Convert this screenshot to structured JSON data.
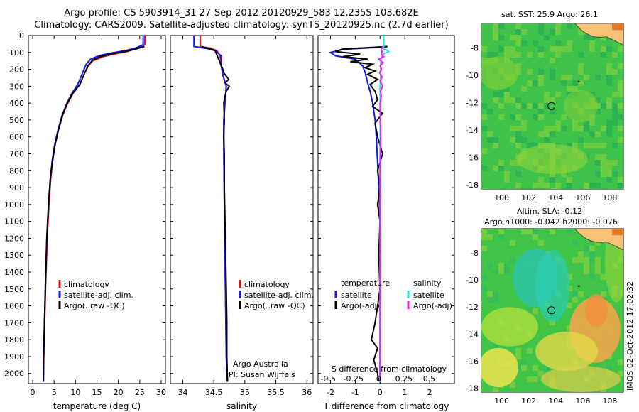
{
  "title": {
    "line1": "Argo profile: CS 5903914_31 27-Sep-2012 20120929_583 12.235S 103.682E",
    "line2": "Climatology: CARS2009. Satellite-adjusted climatology: synTS_20120925.nc (2.7d earlier)"
  },
  "colors": {
    "climatology": "#dd1111",
    "satellite": "#1515ee",
    "argo": "#000000",
    "sal_satellite": "#22e5e5",
    "sal_argo": "#ee22ee"
  },
  "chart_data": [
    {
      "type": "line",
      "id": "temperature",
      "xlabel": "temperature (deg C)",
      "xlim": [
        -1,
        31
      ],
      "xticks": [
        0,
        5,
        10,
        15,
        20,
        25,
        30
      ],
      "ylim": [
        0,
        2060
      ],
      "yticks": [
        0,
        100,
        200,
        300,
        400,
        500,
        600,
        700,
        800,
        900,
        1000,
        1100,
        1200,
        1300,
        1400,
        1500,
        1600,
        1700,
        1800,
        1900,
        2000
      ],
      "legend": [
        "climatology",
        "satellite-adj. clim.",
        "Argo(..raw -QC)"
      ],
      "series": [
        {
          "name": "climatology",
          "color": "#dd1111",
          "points": [
            [
              26.2,
              0
            ],
            [
              26.2,
              55
            ],
            [
              24.5,
              75
            ],
            [
              22,
              95
            ],
            [
              19,
              110
            ],
            [
              16.5,
              125
            ],
            [
              14,
              150
            ],
            [
              13,
              180
            ],
            [
              12,
              230
            ],
            [
              11,
              290
            ],
            [
              9.5,
              340
            ],
            [
              8.2,
              400
            ],
            [
              7,
              470
            ],
            [
              6,
              560
            ],
            [
              5.2,
              650
            ],
            [
              4.6,
              750
            ],
            [
              4.2,
              850
            ],
            [
              3.8,
              1000
            ],
            [
              3.4,
              1200
            ],
            [
              3.0,
              1500
            ],
            [
              2.8,
              1700
            ],
            [
              2.6,
              1900
            ],
            [
              2.5,
              2050
            ]
          ]
        },
        {
          "name": "satellite-adj. clim.",
          "color": "#1515ee",
          "points": [
            [
              25.8,
              0
            ],
            [
              25.8,
              55
            ],
            [
              24,
              75
            ],
            [
              21.5,
              90
            ],
            [
              18,
              105
            ],
            [
              15.5,
              120
            ],
            [
              13.5,
              140
            ],
            [
              12.5,
              170
            ],
            [
              11.5,
              230
            ],
            [
              10.5,
              290
            ],
            [
              9.2,
              340
            ],
            [
              8.0,
              400
            ],
            [
              6.9,
              470
            ],
            [
              5.9,
              560
            ],
            [
              5.1,
              650
            ],
            [
              4.5,
              750
            ],
            [
              4.1,
              850
            ],
            [
              3.7,
              1000
            ],
            [
              3.3,
              1200
            ],
            [
              2.95,
              1500
            ],
            [
              2.75,
              1700
            ],
            [
              2.55,
              1900
            ],
            [
              2.5,
              2050
            ]
          ]
        },
        {
          "name": "Argo(..raw -QC)",
          "color": "#000000",
          "points": [
            [
              26.1,
              65
            ],
            [
              24.3,
              78
            ],
            [
              21.8,
              93
            ],
            [
              18.5,
              108
            ],
            [
              16,
              123
            ],
            [
              14,
              145
            ],
            [
              13,
              175
            ],
            [
              12,
              230
            ],
            [
              11,
              290
            ],
            [
              9.4,
              340
            ],
            [
              8.1,
              400
            ],
            [
              7,
              470
            ],
            [
              6,
              560
            ],
            [
              5.2,
              650
            ],
            [
              4.6,
              750
            ],
            [
              4.1,
              850
            ],
            [
              3.7,
              1000
            ],
            [
              3.3,
              1200
            ],
            [
              2.95,
              1500
            ],
            [
              2.75,
              1700
            ],
            [
              2.55,
              1900
            ],
            [
              2.5,
              2045
            ]
          ]
        }
      ]
    },
    {
      "type": "line",
      "id": "salinity",
      "xlabel": "salinity",
      "xlim": [
        33.8,
        36.1
      ],
      "xticks": [
        34,
        34.5,
        35,
        35.5,
        36
      ],
      "ylim": [
        0,
        2060
      ],
      "legend": [
        "climatology",
        "satellite-adj. clim.",
        "Argo(..raw -QC)"
      ],
      "annotation": [
        "Argo Australia",
        "PI: Susan Wijffels"
      ],
      "series": [
        {
          "name": "climatology",
          "color": "#dd1111",
          "points": [
            [
              34.28,
              0
            ],
            [
              34.28,
              65
            ],
            [
              34.45,
              75
            ],
            [
              34.55,
              90
            ],
            [
              34.6,
              120
            ],
            [
              34.62,
              180
            ],
            [
              34.65,
              240
            ],
            [
              34.7,
              300
            ],
            [
              34.68,
              400
            ],
            [
              34.66,
              500
            ],
            [
              34.66,
              700
            ],
            [
              34.67,
              1000
            ],
            [
              34.68,
              1300
            ],
            [
              34.69,
              1600
            ],
            [
              34.7,
              1900
            ],
            [
              34.72,
              2050
            ]
          ]
        },
        {
          "name": "satellite-adj. clim.",
          "color": "#1515ee",
          "points": [
            [
              34.18,
              0
            ],
            [
              34.18,
              65
            ],
            [
              34.35,
              75
            ],
            [
              34.5,
              85
            ],
            [
              34.62,
              120
            ],
            [
              34.62,
              180
            ],
            [
              34.65,
              240
            ],
            [
              34.7,
              300
            ],
            [
              34.68,
              400
            ],
            [
              34.66,
              500
            ],
            [
              34.66,
              700
            ],
            [
              34.67,
              1000
            ],
            [
              34.68,
              1300
            ],
            [
              34.69,
              1600
            ],
            [
              34.7,
              1900
            ],
            [
              34.72,
              2050
            ]
          ]
        },
        {
          "name": "Argo(..raw -QC)",
          "color": "#000000",
          "points": [
            [
              34.3,
              65
            ],
            [
              34.4,
              75
            ],
            [
              34.52,
              90
            ],
            [
              34.55,
              115
            ],
            [
              34.6,
              160
            ],
            [
              34.62,
              180
            ],
            [
              34.64,
              195
            ],
            [
              34.66,
              220
            ],
            [
              34.7,
              240
            ],
            [
              34.74,
              260
            ],
            [
              34.68,
              280
            ],
            [
              34.75,
              300
            ],
            [
              34.7,
              330
            ],
            [
              34.68,
              360
            ],
            [
              34.66,
              400
            ],
            [
              34.67,
              500
            ],
            [
              34.66,
              600
            ],
            [
              34.67,
              700
            ],
            [
              34.67,
              900
            ],
            [
              34.68,
              1100
            ],
            [
              34.69,
              1300
            ],
            [
              34.7,
              1500
            ],
            [
              34.71,
              1700
            ],
            [
              34.71,
              1900
            ],
            [
              34.72,
              2045
            ]
          ]
        }
      ]
    },
    {
      "type": "line",
      "id": "difference",
      "xlabel": "T difference from climatology",
      "xlabel_top": "S difference from climatology",
      "xlim": [
        -2.5,
        3
      ],
      "xticks": [
        -2,
        -1,
        0,
        1,
        2
      ],
      "xlim_top": [
        -0.6,
        0.75
      ],
      "xticks_top": [
        -0.5,
        -0.25,
        0,
        0.25,
        0.5
      ],
      "ylim": [
        0,
        2060
      ],
      "legend_t": [
        "temperature",
        "satellite",
        "Argo(-adj)"
      ],
      "legend_s": [
        "salinity",
        "satellite",
        "Argo(-adj)"
      ],
      "series": [
        {
          "name": "T satellite",
          "color": "#1515ee",
          "points": [
            [
              0.3,
              65
            ],
            [
              -0.3,
              72
            ],
            [
              -1.5,
              82
            ],
            [
              -2,
              100
            ],
            [
              -1.8,
              120
            ],
            [
              -1,
              140
            ],
            [
              -0.7,
              180
            ],
            [
              -0.6,
              220
            ],
            [
              -0.5,
              280
            ],
            [
              -0.4,
              330
            ],
            [
              -0.3,
              400
            ],
            [
              -0.2,
              500
            ],
            [
              -0.15,
              600
            ],
            [
              -0.1,
              750
            ],
            [
              -0.05,
              900
            ],
            [
              0,
              1100
            ],
            [
              0,
              1300
            ],
            [
              0,
              1600
            ],
            [
              0,
              2050
            ]
          ]
        },
        {
          "name": "T Argo(-adj)",
          "color": "#000000",
          "points": [
            [
              0.3,
              65
            ],
            [
              -1.5,
              80
            ],
            [
              -1.8,
              95
            ],
            [
              -0.8,
              110
            ],
            [
              -1.5,
              125
            ],
            [
              -0.5,
              140
            ],
            [
              -1.2,
              155
            ],
            [
              -0.3,
              170
            ],
            [
              -0.6,
              190
            ],
            [
              -0.2,
              210
            ],
            [
              -0.5,
              230
            ],
            [
              -0.1,
              260
            ],
            [
              -0.4,
              290
            ],
            [
              -0.2,
              330
            ],
            [
              -0.1,
              380
            ],
            [
              -0.3,
              420
            ],
            [
              0.1,
              460
            ],
            [
              -0.2,
              520
            ],
            [
              -0.1,
              600
            ],
            [
              0.1,
              700
            ],
            [
              -0.1,
              800
            ],
            [
              0,
              900
            ],
            [
              -0.1,
              1000
            ],
            [
              0,
              1100
            ],
            [
              -0.05,
              1300
            ],
            [
              0,
              1500
            ],
            [
              -0.1,
              1600
            ],
            [
              -0.2,
              1700
            ],
            [
              -0.35,
              1800
            ],
            [
              -0.1,
              1850
            ],
            [
              -0.25,
              1920
            ],
            [
              -0.1,
              2000
            ],
            [
              -0.05,
              2045
            ]
          ]
        },
        {
          "name": "S satellite",
          "color": "#22e5e5",
          "points": [
            [
              0.15,
              0
            ],
            [
              0.15,
              65
            ],
            [
              0.1,
              75
            ],
            [
              0.25,
              85
            ],
            [
              0.35,
              95
            ],
            [
              0.12,
              110
            ],
            [
              0.05,
              130
            ],
            [
              0.02,
              170
            ],
            [
              0.03,
              220
            ],
            [
              0,
              300
            ],
            [
              0.01,
              500
            ],
            [
              0,
              800
            ],
            [
              0,
              1200
            ],
            [
              0,
              1600
            ],
            [
              0,
              2050
            ]
          ]
        },
        {
          "name": "S Argo(-adj)",
          "color": "#ee22ee",
          "points": [
            [
              0.1,
              65
            ],
            [
              0.05,
              80
            ],
            [
              0.08,
              95
            ],
            [
              0.05,
              110
            ],
            [
              0.15,
              125
            ],
            [
              -0.05,
              140
            ],
            [
              0.12,
              160
            ],
            [
              0,
              180
            ],
            [
              0.06,
              200
            ],
            [
              -0.02,
              220
            ],
            [
              0.08,
              245
            ],
            [
              0.01,
              270
            ],
            [
              0.1,
              300
            ],
            [
              0.02,
              330
            ],
            [
              0.05,
              360
            ],
            [
              0,
              400
            ],
            [
              0.02,
              600
            ],
            [
              0,
              800
            ],
            [
              0.01,
              1100
            ],
            [
              0,
              1400
            ],
            [
              0,
              1700
            ],
            [
              0,
              2045
            ]
          ]
        }
      ]
    },
    {
      "type": "heatmap",
      "id": "sst-map",
      "title": "sat. SST: 25.9 Argo: 26.1",
      "xticks": [
        100,
        102,
        104,
        106,
        108
      ],
      "yticks": [
        -8,
        -10,
        -12,
        -14,
        -16,
        -18
      ],
      "xlim": [
        98.5,
        109
      ],
      "ylim": [
        -18.3,
        -6.2
      ],
      "float_position": [
        103.68,
        -12.24
      ]
    },
    {
      "type": "heatmap",
      "id": "sla-map",
      "title": "Altim. SLA: -0.12",
      "subtitle": "Argo h1000: -0.042 h2000: -0.076",
      "xticks": [
        100,
        102,
        104,
        106,
        108
      ],
      "yticks": [
        -8,
        -10,
        -12,
        -14,
        -16,
        -18
      ],
      "xlim": [
        98.5,
        109
      ],
      "ylim": [
        -18.3,
        -6.2
      ],
      "float_position": [
        103.68,
        -12.24
      ]
    }
  ],
  "watermark": "IMOS 02-Oct-2012 17:02:32"
}
